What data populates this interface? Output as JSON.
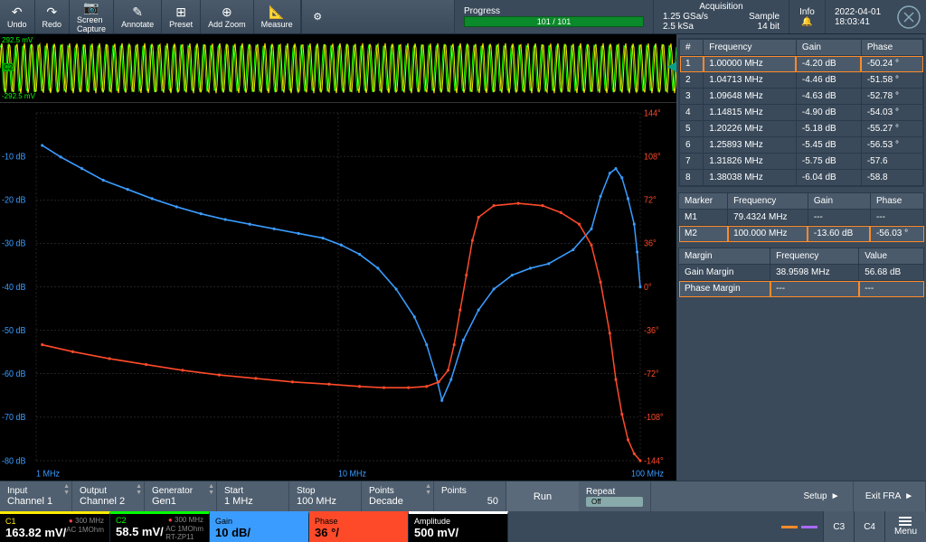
{
  "toolbar": {
    "buttons": [
      {
        "label": "Undo",
        "icon": "↶"
      },
      {
        "label": "Redo",
        "icon": "↷"
      },
      {
        "label": "Screen\nCapture",
        "icon": "📷"
      },
      {
        "label": "Annotate",
        "icon": "✎"
      },
      {
        "label": "Preset",
        "icon": "⊞"
      },
      {
        "label": "Add Zoom",
        "icon": "⊕"
      },
      {
        "label": "Measure",
        "icon": "📐"
      }
    ]
  },
  "status": {
    "progress_label": "Progress",
    "progress_text": "101 / 101",
    "acq_label": "Acquisition",
    "acq_line1_left": "1.25 GSa/s",
    "acq_line1_right": "Sample",
    "acq_line2_left": "2.5 kSa",
    "acq_line2_right": "14 bit",
    "info_label": "Info",
    "date": "2022-04-01",
    "time": "18:03:41"
  },
  "waveform": {
    "color1": "#ffea00",
    "color2": "#00ff00",
    "top_label": "292.5 mV",
    "bottom_label": "-292.5 mV",
    "ch_label": "C2"
  },
  "bode": {
    "bg": "#000000",
    "grid_color": "#444444",
    "gain_color": "#3a9cff",
    "phase_color": "#ff4a2a",
    "y_ticks_db": [
      "",
      "-10 dB",
      "-20 dB",
      "-30 dB",
      "-40 dB",
      "-50 dB",
      "-60 dB",
      "-70 dB",
      "-80 dB"
    ],
    "y_ticks_deg": [
      "144°",
      "108°",
      "72°",
      "36°",
      "0°",
      "-36°",
      "-72°",
      "-108°",
      "-144°"
    ],
    "x_ticks": [
      "1 MHz",
      "10 MHz",
      "100 MHz"
    ],
    "gain_path": [
      [
        2,
        28
      ],
      [
        8,
        38
      ],
      [
        15,
        48
      ],
      [
        22,
        58
      ],
      [
        30,
        66
      ],
      [
        38,
        74
      ],
      [
        46,
        81
      ],
      [
        54,
        87
      ],
      [
        62,
        92
      ],
      [
        70,
        96
      ],
      [
        78,
        100
      ],
      [
        86,
        104
      ],
      [
        94,
        108
      ],
      [
        100,
        114
      ],
      [
        106,
        122
      ],
      [
        112,
        134
      ],
      [
        118,
        152
      ],
      [
        124,
        176
      ],
      [
        128,
        200
      ],
      [
        131,
        226
      ],
      [
        133,
        248
      ],
      [
        136,
        230
      ],
      [
        140,
        196
      ],
      [
        145,
        170
      ],
      [
        150,
        152
      ],
      [
        156,
        140
      ],
      [
        162,
        134
      ],
      [
        168,
        130
      ],
      [
        176,
        118
      ],
      [
        182,
        100
      ],
      [
        185,
        72
      ],
      [
        188,
        52
      ],
      [
        190,
        48
      ],
      [
        192,
        56
      ],
      [
        194,
        74
      ],
      [
        196,
        96
      ],
      [
        197,
        120
      ],
      [
        198,
        150
      ]
    ],
    "phase_path": [
      [
        2,
        200
      ],
      [
        12,
        206
      ],
      [
        24,
        212
      ],
      [
        36,
        217
      ],
      [
        48,
        222
      ],
      [
        60,
        226
      ],
      [
        72,
        229
      ],
      [
        84,
        232
      ],
      [
        96,
        234
      ],
      [
        106,
        236
      ],
      [
        114,
        237
      ],
      [
        122,
        237
      ],
      [
        128,
        236
      ],
      [
        132,
        232
      ],
      [
        135,
        222
      ],
      [
        137,
        200
      ],
      [
        139,
        170
      ],
      [
        141,
        140
      ],
      [
        143,
        110
      ],
      [
        145,
        90
      ],
      [
        150,
        80
      ],
      [
        158,
        78
      ],
      [
        166,
        80
      ],
      [
        172,
        86
      ],
      [
        178,
        96
      ],
      [
        182,
        114
      ],
      [
        185,
        146
      ],
      [
        188,
        190
      ],
      [
        190,
        230
      ],
      [
        192,
        260
      ],
      [
        194,
        282
      ],
      [
        196,
        294
      ],
      [
        198,
        300
      ]
    ]
  },
  "results_table": {
    "headers": [
      "#",
      "Frequency",
      "Gain",
      "Phase"
    ],
    "rows": [
      [
        "1",
        "1.00000 MHz",
        "-4.20 dB",
        "-50.24 °"
      ],
      [
        "2",
        "1.04713 MHz",
        "-4.46 dB",
        "-51.58 °"
      ],
      [
        "3",
        "1.09648 MHz",
        "-4.63 dB",
        "-52.78 °"
      ],
      [
        "4",
        "1.14815 MHz",
        "-4.90 dB",
        "-54.03 °"
      ],
      [
        "5",
        "1.20226 MHz",
        "-5.18 dB",
        "-55.27 °"
      ],
      [
        "6",
        "1.25893 MHz",
        "-5.45 dB",
        "-56.53 °"
      ],
      [
        "7",
        "1.31826 MHz",
        "-5.75 dB",
        "-57.6"
      ],
      [
        "8",
        "1.38038 MHz",
        "-6.04 dB",
        "-58.8"
      ]
    ],
    "selected_index": 0
  },
  "marker_table": {
    "headers": [
      "Marker",
      "Frequency",
      "Gain",
      "Phase"
    ],
    "rows": [
      [
        "M1",
        "79.4324 MHz",
        "---",
        "---"
      ],
      [
        "M2",
        "100.000 MHz",
        "-13.60 dB",
        "-56.03 °"
      ]
    ],
    "selected_index": 1
  },
  "margin_table": {
    "headers": [
      "Margin",
      "Frequency",
      "Value"
    ],
    "rows": [
      [
        "Gain Margin",
        "38.9598 MHz",
        "56.68 dB"
      ],
      [
        "Phase Margin",
        "---",
        "---"
      ]
    ],
    "selected_index": 1
  },
  "controls": {
    "input": {
      "label": "Input",
      "value": "Channel 1"
    },
    "output": {
      "label": "Output",
      "value": "Channel 2"
    },
    "generator": {
      "label": "Generator",
      "value": "Gen1"
    },
    "start": {
      "label": "Start",
      "value": "1 MHz"
    },
    "stop": {
      "label": "Stop",
      "value": "100 MHz"
    },
    "points_mode": {
      "label": "Points",
      "value": "Decade"
    },
    "points_n": {
      "label": "Points",
      "value": "50"
    },
    "run": "Run",
    "repeat_label": "Repeat",
    "repeat_state": "Off",
    "setup": "Setup",
    "exit": "Exit FRA"
  },
  "channels": {
    "c1": {
      "name": "C1",
      "value": "163.82 mV/",
      "freq": "300 MHz",
      "coupling": "AC 1MOhm"
    },
    "c2": {
      "name": "C2",
      "value": "58.5 mV/",
      "freq": "300 MHz",
      "coupling": "AC 1MOhm",
      "probe": "RT-ZP11"
    },
    "gain": {
      "name": "Gain",
      "value": "10 dB/"
    },
    "phase": {
      "name": "Phase",
      "value": "36 °/"
    },
    "amp": {
      "name": "Amplitude",
      "value": "500 mV/"
    },
    "c3": "C3",
    "c4": "C4",
    "menu": "Menu"
  },
  "colors": {
    "gain": "#3a9cff",
    "phase": "#ff4a2a",
    "c1": "#ffea00",
    "c2": "#00ff00",
    "c3": "#ff8a2a",
    "c4": "#aa6aff"
  }
}
